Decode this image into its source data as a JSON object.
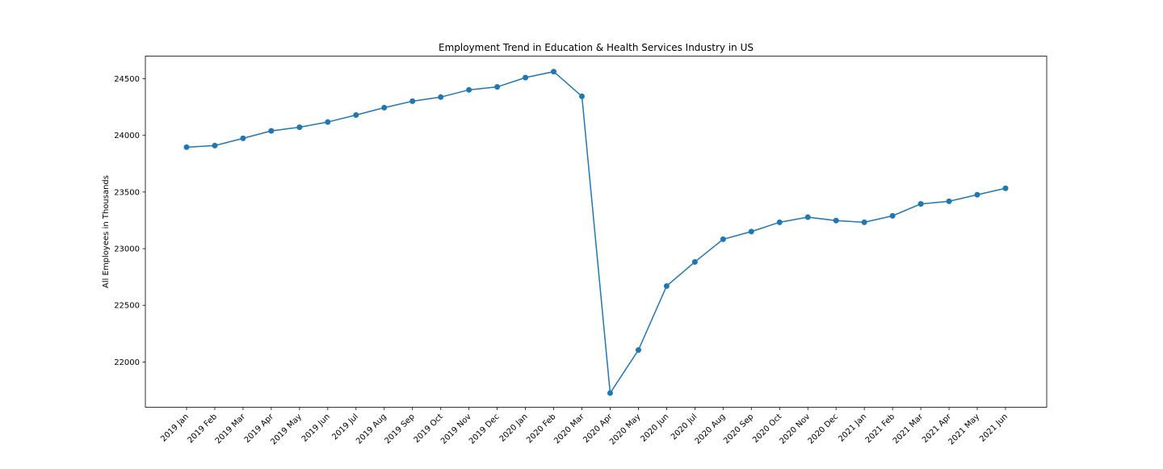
{
  "chart_data": {
    "type": "line",
    "title": "Employment Trend in Education & Health Services Industry in US",
    "xlabel": "",
    "ylabel": "All Employees in Thousands",
    "categories": [
      "2019 Jan",
      "2019 Feb",
      "2019 Mar",
      "2019 Apr",
      "2019 May",
      "2019 Jun",
      "2019 Jul",
      "2019 Aug",
      "2019 Sep",
      "2019 Oct",
      "2019 Nov",
      "2019 Dec",
      "2020 Jan",
      "2020 Feb",
      "2020 Mar",
      "2020 Apr",
      "2020 May",
      "2020 Jun",
      "2020 Jul",
      "2020 Aug",
      "2020 Sep",
      "2020 Oct",
      "2020 Nov",
      "2020 Dec",
      "2021 Jan",
      "2021 Feb",
      "2021 Mar",
      "2021 Apr",
      "2021 May",
      "2021 Jun"
    ],
    "series": [
      {
        "values": [
          23896,
          23910,
          23974,
          24040,
          24072,
          24118,
          24180,
          24245,
          24302,
          24338,
          24402,
          24428,
          24510,
          24563,
          24345,
          21725,
          22105,
          22670,
          22883,
          23083,
          23151,
          23233,
          23278,
          23248,
          23233,
          23290,
          23395,
          23418,
          23476,
          23533
        ]
      }
    ],
    "ylim": [
      21600,
      24700
    ],
    "yticks": [
      22000,
      22500,
      23000,
      23500,
      24000,
      24500
    ],
    "grid": false,
    "line_color": "#1f77b4",
    "marker": "circle"
  }
}
